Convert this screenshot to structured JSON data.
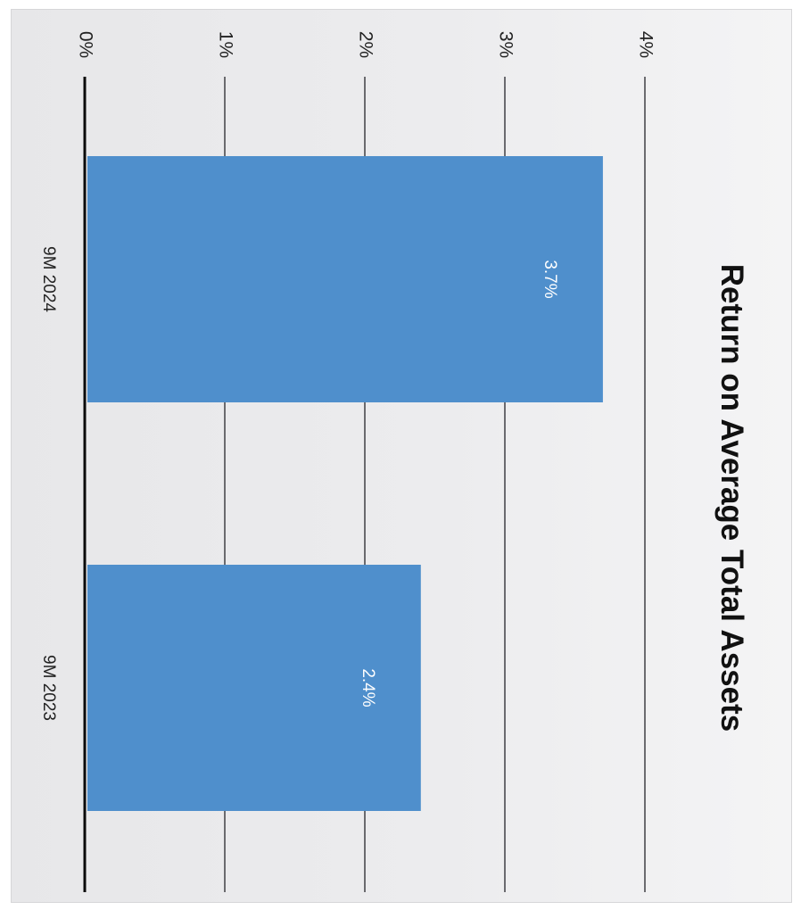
{
  "chart_data": {
    "type": "bar",
    "orientation": "vertical",
    "rotation": "rotated 90 degrees clockwise",
    "title": "Return on Average Total Assets",
    "categories": [
      "9M 2024",
      "9M 2023"
    ],
    "values": [
      3.7,
      2.4
    ],
    "data_labels": [
      "3.7%",
      "2.4%"
    ],
    "yticks": [
      "0%",
      "1%",
      "2%",
      "3%",
      "4%"
    ],
    "ylim": [
      0,
      4
    ],
    "grid": true,
    "legend": "none",
    "colors": {
      "bar": "#4f8fcc",
      "gridline": "#4a4a4f",
      "baseline": "#0a0a0a",
      "background": "#ececee"
    }
  }
}
